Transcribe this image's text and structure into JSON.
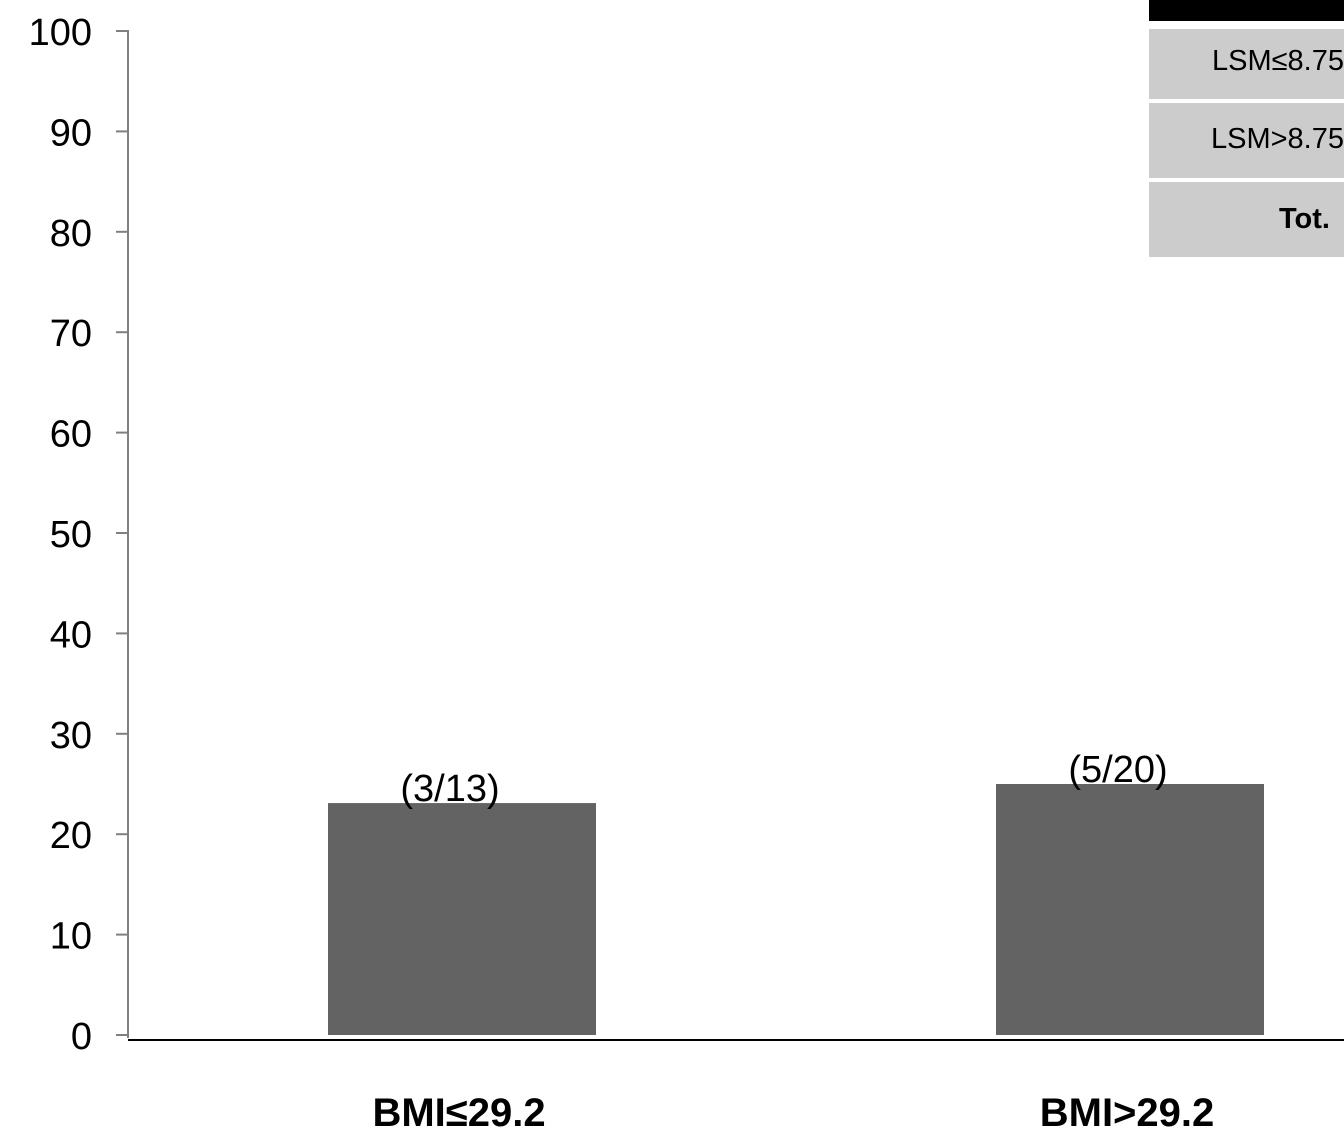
{
  "chart_data": {
    "type": "bar",
    "categories": [
      "BMI≤29.2",
      "BMI>29.2"
    ],
    "values": [
      23.1,
      25.0
    ],
    "data_labels": [
      "(3/13)",
      "(5/20)"
    ],
    "title": "",
    "xlabel": "",
    "ylabel": "",
    "ylim": [
      0,
      100
    ],
    "yticks": [
      0,
      10,
      20,
      30,
      40,
      50,
      60,
      70,
      80,
      90,
      100
    ],
    "grid": false,
    "colors": {
      "bar": "#636363",
      "axis": "#808080",
      "baseline": "#000000"
    }
  },
  "table": {
    "rows": [
      "LSM≤8.75",
      "LSM>8.75",
      "Tot."
    ],
    "colors": {
      "header": "#000000",
      "cell": "#cccccc"
    }
  }
}
